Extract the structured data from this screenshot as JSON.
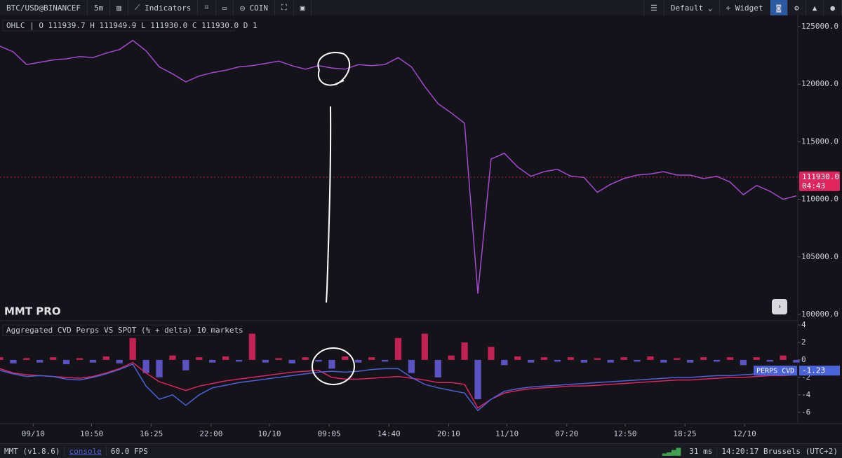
{
  "toolbar": {
    "symbol": "BTC/USD@BINANCEF",
    "timeframe": "5m",
    "indicators": "Indicators",
    "coin": "COIN",
    "layout": "Default",
    "widget": "Widget"
  },
  "ohlc": "OHLC | O 111939.7 H 111949.9 L 111930.0 C 111930.0 D 1",
  "watermark": "MMT PRO",
  "chart_data": [
    {
      "type": "line",
      "xlim": [
        0,
        60
      ],
      "xticks": [
        {
          "value": 2.5,
          "label": "09/10"
        },
        {
          "value": 6.9,
          "label": "10:50"
        },
        {
          "value": 11.4,
          "label": "16:25"
        },
        {
          "value": 15.9,
          "label": "22:00"
        },
        {
          "value": 20.3,
          "label": "10/10"
        },
        {
          "value": 24.8,
          "label": "09:05"
        },
        {
          "value": 29.3,
          "label": "14:40"
        },
        {
          "value": 33.8,
          "label": "20:10"
        },
        {
          "value": 38.2,
          "label": "11/10"
        },
        {
          "value": 42.7,
          "label": "07:20"
        },
        {
          "value": 47.1,
          "label": "12:50"
        },
        {
          "value": 51.6,
          "label": "18:25"
        },
        {
          "value": 56.1,
          "label": "12/10"
        }
      ],
      "ylim": [
        99450,
        125970
      ],
      "yticks": [
        {
          "value": 125000,
          "label": "125000.0"
        },
        {
          "value": 120000,
          "label": "120000.0"
        },
        {
          "value": 115000,
          "label": "115000.0"
        },
        {
          "value": 110000,
          "label": "110000.0"
        },
        {
          "value": 105000,
          "label": "105000.0"
        },
        {
          "value": 100000,
          "label": "100000.0"
        }
      ],
      "series": [
        {
          "color": "#a24bd0",
          "values": [
            123300,
            122800,
            121700,
            121900,
            122100,
            122200,
            122400,
            122300,
            122700,
            123000,
            123800,
            122900,
            121500,
            120900,
            120200,
            120700,
            121000,
            121200,
            121500,
            121600,
            121800,
            122000,
            121600,
            121300,
            121600,
            121400,
            121300,
            121700,
            121600,
            121700,
            122300,
            121500,
            119800,
            118300,
            117500,
            116600,
            101800,
            113500,
            114000,
            112800,
            112000,
            112400,
            112600,
            112000,
            111900,
            110600,
            111300,
            111800,
            112100,
            112200,
            112400,
            112100,
            112100,
            111800,
            112000,
            111500,
            110400,
            111200,
            110700,
            110000,
            110300
          ]
        }
      ],
      "last_price": {
        "value": 111930,
        "label": "111930.0"
      },
      "countdown": "04:43",
      "price_tag_color": "#e0245e"
    },
    {
      "type": "line",
      "title": "Aggregated CVD Perps VS SPOT (% + delta) 10 markets",
      "xlim": [
        0,
        60
      ],
      "ylim": [
        -7.3,
        4.48
      ],
      "yticks": [
        4,
        2,
        0,
        -2,
        -4,
        -6
      ],
      "series": [
        {
          "color": "#e0245e",
          "values": [
            -1.0,
            -1.5,
            -1.7,
            -1.8,
            -1.9,
            -2.0,
            -2.1,
            -1.9,
            -1.5,
            -1.0,
            -0.3,
            -1.5,
            -2.5,
            -3.0,
            -3.5,
            -3.0,
            -2.7,
            -2.4,
            -2.2,
            -2.0,
            -1.8,
            -1.6,
            -1.4,
            -1.3,
            -1.2,
            -2.0,
            -2.2,
            -2.2,
            -2.1,
            -2.0,
            -1.9,
            -2.1,
            -2.3,
            -2.6,
            -2.6,
            -2.8,
            -5.5,
            -4.5,
            -3.8,
            -3.5,
            -3.3,
            -3.2,
            -3.1,
            -3.0,
            -3.0,
            -2.9,
            -2.8,
            -2.7,
            -2.6,
            -2.5,
            -2.4,
            -2.3,
            -2.3,
            -2.2,
            -2.1,
            -2.0,
            -2.0,
            -1.9,
            -1.8,
            -1.8,
            -1.7
          ]
        },
        {
          "name": "PERPS CVD",
          "color": "#4a63d8",
          "values": [
            -1.2,
            -1.6,
            -1.9,
            -1.8,
            -1.9,
            -2.2,
            -2.3,
            -2.0,
            -1.6,
            -1.1,
            -0.5,
            -3.0,
            -4.5,
            -4.0,
            -5.2,
            -4.0,
            -3.2,
            -2.9,
            -2.6,
            -2.4,
            -2.2,
            -2.0,
            -1.8,
            -1.6,
            -1.4,
            -1.3,
            -1.4,
            -1.3,
            -1.1,
            -1.0,
            -1.0,
            -2.0,
            -2.8,
            -3.2,
            -3.5,
            -3.8,
            -5.8,
            -4.5,
            -3.6,
            -3.3,
            -3.1,
            -3.0,
            -2.9,
            -2.8,
            -2.7,
            -2.6,
            -2.5,
            -2.4,
            -2.3,
            -2.2,
            -2.1,
            -2.0,
            -2.0,
            -1.9,
            -1.8,
            -1.8,
            -1.7,
            -1.6,
            -1.6,
            -1.5,
            -1.23
          ],
          "last_value": -1.23
        }
      ],
      "delta_values": [
        0.3,
        -0.4,
        0.2,
        -0.3,
        0.3,
        -0.5,
        0.2,
        -0.3,
        0.4,
        -0.4,
        2.5,
        -1.5,
        -2.0,
        0.5,
        -1.2,
        0.3,
        -0.3,
        0.4,
        -0.2,
        3.0,
        -0.3,
        0.2,
        -0.4,
        0.3,
        -0.2,
        -1.0,
        0.4,
        -0.3,
        0.3,
        -0.2,
        2.5,
        -1.5,
        3.0,
        -2.0,
        0.5,
        2.0,
        -4.5,
        1.5,
        -0.6,
        0.4,
        -0.3,
        0.3,
        -0.2,
        0.3,
        -0.3,
        0.2,
        -0.3,
        0.3,
        -0.2,
        0.4,
        -0.3,
        0.2,
        -0.3,
        0.3,
        -0.2,
        0.3,
        -0.6,
        0.3,
        -0.2,
        0.5,
        -0.3
      ],
      "bar_colors": {
        "up": "#e0245e",
        "down": "#6a5fe0"
      }
    }
  ],
  "status_bar": {
    "version": "MMT (v1.8.6)",
    "console": "console",
    "fps": "60.0 FPS",
    "latency": "31 ms",
    "clock": "14:20:17 Brussels (UTC+2)"
  }
}
